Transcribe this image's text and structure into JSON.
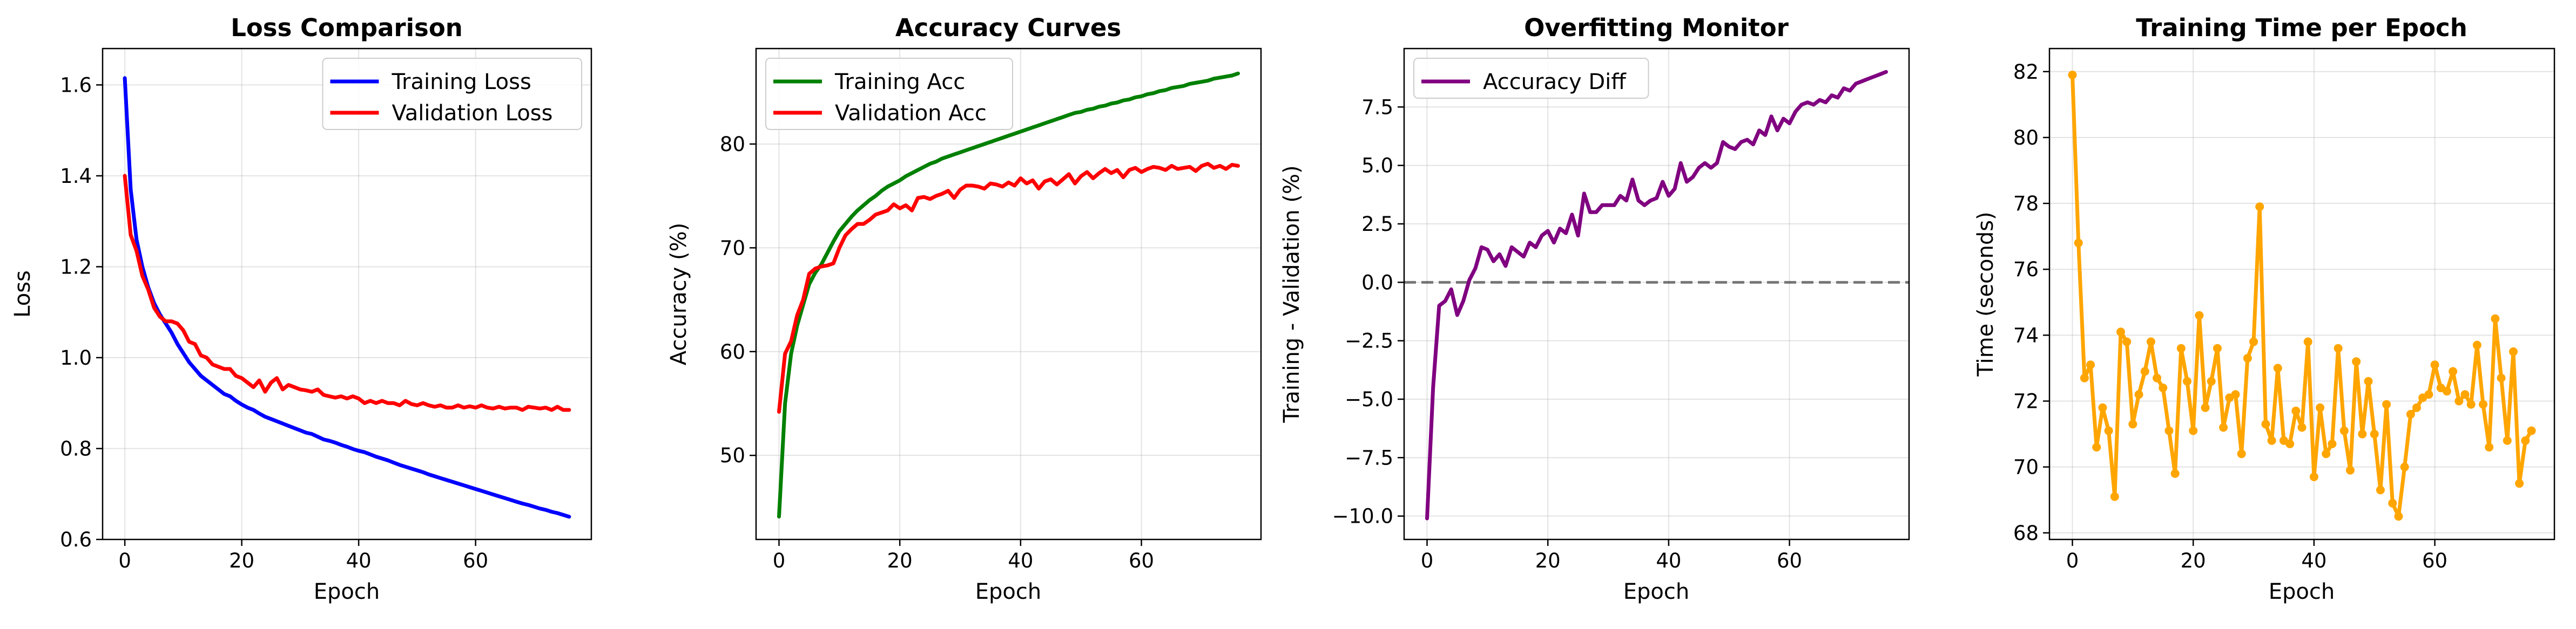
{
  "chart_data": [
    {
      "type": "line",
      "title": "Loss Comparison",
      "xlabel": "Epoch",
      "ylabel": "Loss",
      "xlim": [
        -3.8,
        79.8
      ],
      "ylim": [
        0.6,
        1.68
      ],
      "xticks": [
        0,
        20,
        40,
        60
      ],
      "yticks": [
        0.6,
        0.8,
        1.0,
        1.2,
        1.4,
        1.6
      ],
      "ytick_decimals": 1,
      "grid": true,
      "legend_position": "top-right",
      "x": [
        0,
        1,
        2,
        3,
        4,
        5,
        6,
        7,
        8,
        9,
        10,
        11,
        12,
        13,
        14,
        15,
        16,
        17,
        18,
        19,
        20,
        21,
        22,
        23,
        24,
        25,
        26,
        27,
        28,
        29,
        30,
        31,
        32,
        33,
        34,
        35,
        36,
        37,
        38,
        39,
        40,
        41,
        42,
        43,
        44,
        45,
        46,
        47,
        48,
        49,
        50,
        51,
        52,
        53,
        54,
        55,
        56,
        57,
        58,
        59,
        60,
        61,
        62,
        63,
        64,
        65,
        66,
        67,
        68,
        69,
        70,
        71,
        72,
        73,
        74,
        75,
        76
      ],
      "series": [
        {
          "name": "Training Loss",
          "color": "#0000ff",
          "marker": false,
          "values": [
            1.615,
            1.37,
            1.26,
            1.2,
            1.155,
            1.12,
            1.095,
            1.075,
            1.055,
            1.03,
            1.01,
            0.99,
            0.975,
            0.96,
            0.95,
            0.94,
            0.93,
            0.92,
            0.915,
            0.905,
            0.897,
            0.89,
            0.885,
            0.877,
            0.87,
            0.865,
            0.86,
            0.855,
            0.85,
            0.845,
            0.84,
            0.835,
            0.832,
            0.826,
            0.82,
            0.817,
            0.813,
            0.808,
            0.804,
            0.799,
            0.795,
            0.792,
            0.787,
            0.782,
            0.778,
            0.774,
            0.769,
            0.764,
            0.76,
            0.756,
            0.752,
            0.748,
            0.743,
            0.739,
            0.735,
            0.731,
            0.727,
            0.723,
            0.719,
            0.715,
            0.711,
            0.707,
            0.703,
            0.699,
            0.695,
            0.691,
            0.687,
            0.683,
            0.679,
            0.676,
            0.672,
            0.668,
            0.665,
            0.661,
            0.658,
            0.654,
            0.65
          ]
        },
        {
          "name": "Validation Loss",
          "color": "#ff0000",
          "marker": false,
          "values": [
            1.4,
            1.27,
            1.235,
            1.18,
            1.15,
            1.11,
            1.09,
            1.08,
            1.08,
            1.075,
            1.06,
            1.035,
            1.03,
            1.005,
            1.0,
            0.985,
            0.98,
            0.975,
            0.975,
            0.96,
            0.955,
            0.945,
            0.935,
            0.95,
            0.925,
            0.945,
            0.955,
            0.93,
            0.94,
            0.935,
            0.93,
            0.928,
            0.925,
            0.93,
            0.918,
            0.915,
            0.912,
            0.915,
            0.91,
            0.915,
            0.91,
            0.9,
            0.905,
            0.9,
            0.905,
            0.9,
            0.9,
            0.895,
            0.905,
            0.898,
            0.895,
            0.9,
            0.895,
            0.892,
            0.895,
            0.89,
            0.89,
            0.895,
            0.89,
            0.893,
            0.89,
            0.895,
            0.89,
            0.888,
            0.892,
            0.888,
            0.89,
            0.89,
            0.885,
            0.892,
            0.89,
            0.888,
            0.89,
            0.885,
            0.892,
            0.885,
            0.885
          ]
        }
      ]
    },
    {
      "type": "line",
      "title": "Accuracy Curves",
      "xlabel": "Epoch",
      "ylabel": "Accuracy (%)",
      "xlim": [
        -3.8,
        79.8
      ],
      "ylim": [
        41.9,
        89.2
      ],
      "xticks": [
        0,
        20,
        40,
        60
      ],
      "yticks": [
        50,
        60,
        70,
        80
      ],
      "ytick_decimals": 0,
      "grid": true,
      "legend_position": "top-left",
      "x": [
        0,
        1,
        2,
        3,
        4,
        5,
        6,
        7,
        8,
        9,
        10,
        11,
        12,
        13,
        14,
        15,
        16,
        17,
        18,
        19,
        20,
        21,
        22,
        23,
        24,
        25,
        26,
        27,
        28,
        29,
        30,
        31,
        32,
        33,
        34,
        35,
        36,
        37,
        38,
        39,
        40,
        41,
        42,
        43,
        44,
        45,
        46,
        47,
        48,
        49,
        50,
        51,
        52,
        53,
        54,
        55,
        56,
        57,
        58,
        59,
        60,
        61,
        62,
        63,
        64,
        65,
        66,
        67,
        68,
        69,
        70,
        71,
        72,
        73,
        74,
        75,
        76
      ],
      "series": [
        {
          "name": "Training Acc",
          "color": "#008000",
          "marker": false,
          "values": [
            44.1,
            55,
            59.8,
            62.5,
            64.5,
            66.5,
            67.6,
            68.4,
            69.5,
            70.6,
            71.6,
            72.3,
            73,
            73.6,
            74.1,
            74.6,
            75,
            75.5,
            75.9,
            76.2,
            76.5,
            76.9,
            77.2,
            77.5,
            77.8,
            78.1,
            78.3,
            78.6,
            78.8,
            79,
            79.2,
            79.4,
            79.6,
            79.8,
            80,
            80.2,
            80.4,
            80.6,
            80.8,
            81,
            81.2,
            81.4,
            81.6,
            81.8,
            82,
            82.2,
            82.4,
            82.6,
            82.8,
            83,
            83.1,
            83.3,
            83.4,
            83.6,
            83.7,
            83.9,
            84,
            84.2,
            84.3,
            84.5,
            84.6,
            84.8,
            84.9,
            85.1,
            85.2,
            85.4,
            85.5,
            85.6,
            85.8,
            85.9,
            86,
            86.1,
            86.3,
            86.4,
            86.5,
            86.6,
            86.8
          ]
        },
        {
          "name": "Validation Acc",
          "color": "#ff0000",
          "marker": false,
          "values": [
            54.2,
            59.8,
            61,
            63.5,
            65,
            67.5,
            68,
            68.2,
            68.3,
            68.5,
            70,
            71.2,
            71.8,
            72.3,
            72.3,
            72.7,
            73.2,
            73.4,
            73.6,
            74.2,
            73.8,
            74.1,
            73.6,
            74.8,
            74.9,
            74.7,
            75,
            75.2,
            75.5,
            74.8,
            75.6,
            76,
            76,
            75.9,
            75.7,
            76.2,
            76.1,
            75.9,
            76.3,
            76,
            76.7,
            76.2,
            76.5,
            75.7,
            76.4,
            76.6,
            76.1,
            76.6,
            77.1,
            76.2,
            76.9,
            77.3,
            76.7,
            77.2,
            77.6,
            77.2,
            77.5,
            76.8,
            77.5,
            77.7,
            77.3,
            77.6,
            77.8,
            77.7,
            77.5,
            77.9,
            77.6,
            77.7,
            77.8,
            77.4,
            77.9,
            78.1,
            77.7,
            77.9,
            77.6,
            78,
            77.9
          ]
        }
      ]
    },
    {
      "type": "line",
      "title": "Overfitting Monitor",
      "xlabel": "Epoch",
      "ylabel": "Training - Validation (%)",
      "xlim": [
        -3.8,
        79.8
      ],
      "ylim": [
        -11.0,
        10.0
      ],
      "xticks": [
        0,
        20,
        40,
        60
      ],
      "yticks": [
        -10.0,
        -7.5,
        -5.0,
        -2.5,
        0.0,
        2.5,
        5.0,
        7.5
      ],
      "ytick_decimals": 1,
      "grid": true,
      "legend_position": "top-left",
      "reference_line": 0.0,
      "x": [
        0,
        1,
        2,
        3,
        4,
        5,
        6,
        7,
        8,
        9,
        10,
        11,
        12,
        13,
        14,
        15,
        16,
        17,
        18,
        19,
        20,
        21,
        22,
        23,
        24,
        25,
        26,
        27,
        28,
        29,
        30,
        31,
        32,
        33,
        34,
        35,
        36,
        37,
        38,
        39,
        40,
        41,
        42,
        43,
        44,
        45,
        46,
        47,
        48,
        49,
        50,
        51,
        52,
        53,
        54,
        55,
        56,
        57,
        58,
        59,
        60,
        61,
        62,
        63,
        64,
        65,
        66,
        67,
        68,
        69,
        70,
        71,
        72,
        73,
        74,
        75,
        76
      ],
      "series": [
        {
          "name": "Accuracy Diff",
          "color": "#800080",
          "marker": false,
          "values": [
            -10.1,
            -4.5,
            -1,
            -0.8,
            -0.3,
            -1.4,
            -0.8,
            0.1,
            0.6,
            1.5,
            1.4,
            0.9,
            1.2,
            0.7,
            1.5,
            1.3,
            1.1,
            1.7,
            1.5,
            2,
            2.2,
            1.7,
            2.3,
            2.1,
            2.9,
            2,
            3.8,
            3,
            3,
            3.3,
            3.3,
            3.3,
            3.7,
            3.5,
            4.4,
            3.5,
            3.3,
            3.5,
            3.6,
            4.3,
            3.7,
            4,
            5.1,
            4.3,
            4.5,
            4.9,
            5.1,
            4.9,
            5.1,
            6,
            5.8,
            5.7,
            6,
            6.1,
            5.9,
            6.5,
            6.3,
            7.1,
            6.5,
            7,
            6.8,
            7.3,
            7.6,
            7.7,
            7.6,
            7.8,
            7.7,
            8,
            7.9,
            8.3,
            8.2,
            8.5,
            8.6,
            8.7,
            8.8,
            8.9,
            9
          ]
        }
      ]
    },
    {
      "type": "line",
      "title": "Training Time per Epoch",
      "xlabel": "Epoch",
      "ylabel": "Time (seconds)",
      "xlim": [
        -3.8,
        79.8
      ],
      "ylim": [
        67.8,
        82.7
      ],
      "xticks": [
        0,
        20,
        40,
        60
      ],
      "yticks": [
        68,
        70,
        72,
        74,
        76,
        78,
        80,
        82
      ],
      "ytick_decimals": 0,
      "grid": true,
      "x": [
        0,
        1,
        2,
        3,
        4,
        5,
        6,
        7,
        8,
        9,
        10,
        11,
        12,
        13,
        14,
        15,
        16,
        17,
        18,
        19,
        20,
        21,
        22,
        23,
        24,
        25,
        26,
        27,
        28,
        29,
        30,
        31,
        32,
        33,
        34,
        35,
        36,
        37,
        38,
        39,
        40,
        41,
        42,
        43,
        44,
        45,
        46,
        47,
        48,
        49,
        50,
        51,
        52,
        53,
        54,
        55,
        56,
        57,
        58,
        59,
        60,
        61,
        62,
        63,
        64,
        65,
        66,
        67,
        68,
        69,
        70,
        71,
        72,
        73,
        74,
        75,
        76
      ],
      "series": [
        {
          "color": "#ffa500",
          "marker": true,
          "values": [
            81.9,
            76.8,
            72.7,
            73.1,
            70.6,
            71.8,
            71.1,
            69.1,
            74.1,
            73.8,
            71.3,
            72.2,
            72.9,
            73.8,
            72.7,
            72.4,
            71.1,
            69.8,
            73.6,
            72.6,
            71.1,
            74.6,
            71.8,
            72.6,
            73.6,
            71.2,
            72.1,
            72.2,
            70.4,
            73.3,
            73.8,
            77.9,
            71.3,
            70.8,
            73,
            70.8,
            70.7,
            71.7,
            71.2,
            73.8,
            69.7,
            71.8,
            70.4,
            70.7,
            73.6,
            71.1,
            69.9,
            73.2,
            71,
            72.6,
            71,
            69.3,
            71.9,
            68.9,
            68.5,
            70,
            71.6,
            71.8,
            72.1,
            72.2,
            73.1,
            72.4,
            72.3,
            72.9,
            72,
            72.2,
            71.9,
            73.7,
            71.9,
            70.6,
            74.5,
            72.7,
            70.8,
            73.5,
            69.5,
            70.8,
            71.1
          ]
        }
      ]
    }
  ]
}
